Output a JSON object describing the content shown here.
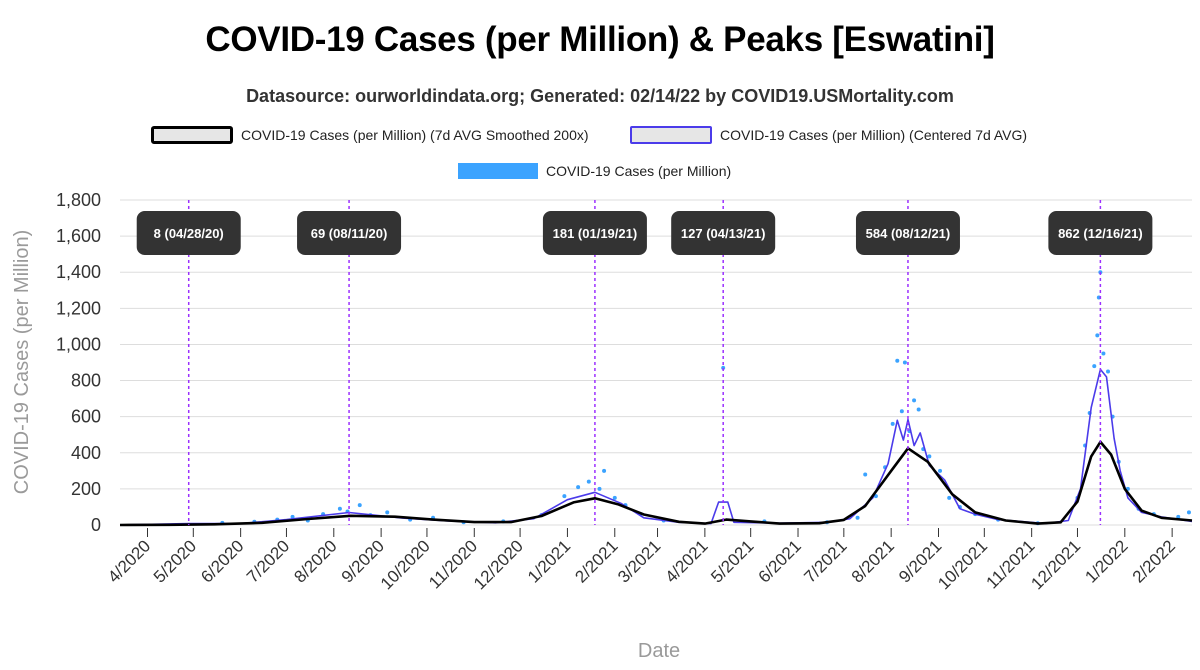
{
  "header": {
    "title": "COVID-19 Cases (per Million) & Peaks [Eswatini]",
    "subtitle": "Datasource: ourworldindata.org; Generated: 02/14/22 by COVID19.USMortality.com"
  },
  "legend": {
    "smoothed": "COVID-19 Cases (per Million) (7d AVG Smoothed 200x)",
    "centered": "COVID-19 Cases (per Million) (Centered 7d AVG)",
    "cases": "COVID-19 Cases (per Million)"
  },
  "colors": {
    "smoothed": "#000000",
    "centered": "#4b3bea",
    "cases": "#3ba3ff",
    "peak_line": "#9b30ff",
    "peak_label_bg": "#333333",
    "grid": "#dddddd"
  },
  "chart_data": {
    "type": "line",
    "title": "COVID-19 Cases (per Million) & Peaks [Eswatini]",
    "xlabel": "Date",
    "ylabel": "COVID-19 Cases (per Million)",
    "ylim": [
      0,
      1800
    ],
    "yticks": [
      0,
      200,
      400,
      600,
      800,
      1000,
      1200,
      1400,
      1600,
      1800
    ],
    "ytick_labels": [
      "0",
      "200",
      "400",
      "600",
      "800",
      "1,000",
      "1,200",
      "1,400",
      "1,600",
      "1,800"
    ],
    "xlim": [
      "2020-03-14",
      "2022-02-14"
    ],
    "xticks": [
      {
        "date": "2020-04-01",
        "label": "4/2020"
      },
      {
        "date": "2020-05-01",
        "label": "5/2020"
      },
      {
        "date": "2020-06-01",
        "label": "6/2020"
      },
      {
        "date": "2020-07-01",
        "label": "7/2020"
      },
      {
        "date": "2020-08-01",
        "label": "8/2020"
      },
      {
        "date": "2020-09-01",
        "label": "9/2020"
      },
      {
        "date": "2020-10-01",
        "label": "10/2020"
      },
      {
        "date": "2020-11-01",
        "label": "11/2020"
      },
      {
        "date": "2020-12-01",
        "label": "12/2020"
      },
      {
        "date": "2021-01-01",
        "label": "1/2021"
      },
      {
        "date": "2021-02-01",
        "label": "2/2021"
      },
      {
        "date": "2021-03-01",
        "label": "3/2021"
      },
      {
        "date": "2021-04-01",
        "label": "4/2021"
      },
      {
        "date": "2021-05-01",
        "label": "5/2021"
      },
      {
        "date": "2021-06-01",
        "label": "6/2021"
      },
      {
        "date": "2021-07-01",
        "label": "7/2021"
      },
      {
        "date": "2021-08-01",
        "label": "8/2021"
      },
      {
        "date": "2021-09-01",
        "label": "9/2021"
      },
      {
        "date": "2021-10-01",
        "label": "10/2021"
      },
      {
        "date": "2021-11-01",
        "label": "11/2021"
      },
      {
        "date": "2021-12-01",
        "label": "12/2021"
      },
      {
        "date": "2022-01-01",
        "label": "1/2022"
      },
      {
        "date": "2022-02-01",
        "label": "2/2022"
      }
    ],
    "grid": true,
    "legend_position": "top",
    "peaks": [
      {
        "date": "2020-04-28",
        "label": "8 (04/28/20)"
      },
      {
        "date": "2020-08-11",
        "label": "69 (08/11/20)"
      },
      {
        "date": "2021-01-19",
        "label": "181 (01/19/21)"
      },
      {
        "date": "2021-04-13",
        "label": "127 (04/13/21)"
      },
      {
        "date": "2021-08-12",
        "label": "584 (08/12/21)"
      },
      {
        "date": "2021-12-16",
        "label": "862 (12/16/21)"
      }
    ],
    "series": [
      {
        "name": "COVID-19 Cases (per Million) (7d AVG Smoothed 200x)",
        "style": "line",
        "points": [
          [
            "2020-03-14",
            0
          ],
          [
            "2020-04-15",
            1
          ],
          [
            "2020-05-15",
            4
          ],
          [
            "2020-06-15",
            12
          ],
          [
            "2020-07-15",
            33
          ],
          [
            "2020-08-12",
            51
          ],
          [
            "2020-09-10",
            46
          ],
          [
            "2020-10-05",
            30
          ],
          [
            "2020-11-01",
            16
          ],
          [
            "2020-11-25",
            16
          ],
          [
            "2020-12-15",
            50
          ],
          [
            "2021-01-05",
            125
          ],
          [
            "2021-01-19",
            148
          ],
          [
            "2021-02-03",
            115
          ],
          [
            "2021-02-20",
            58
          ],
          [
            "2021-03-15",
            18
          ],
          [
            "2021-04-01",
            8
          ],
          [
            "2021-04-15",
            30
          ],
          [
            "2021-05-01",
            20
          ],
          [
            "2021-05-20",
            8
          ],
          [
            "2021-06-15",
            10
          ],
          [
            "2021-07-01",
            28
          ],
          [
            "2021-07-15",
            105
          ],
          [
            "2021-08-01",
            300
          ],
          [
            "2021-08-12",
            425
          ],
          [
            "2021-08-25",
            350
          ],
          [
            "2021-09-10",
            170
          ],
          [
            "2021-09-25",
            70
          ],
          [
            "2021-10-15",
            25
          ],
          [
            "2021-11-05",
            8
          ],
          [
            "2021-11-20",
            15
          ],
          [
            "2021-12-01",
            130
          ],
          [
            "2021-12-10",
            380
          ],
          [
            "2021-12-16",
            460
          ],
          [
            "2021-12-23",
            390
          ],
          [
            "2022-01-01",
            200
          ],
          [
            "2022-01-12",
            80
          ],
          [
            "2022-01-25",
            40
          ],
          [
            "2022-02-14",
            25
          ]
        ]
      },
      {
        "name": "COVID-19 Cases (per Million) (Centered 7d AVG)",
        "style": "line",
        "points": [
          [
            "2020-03-14",
            0
          ],
          [
            "2020-04-28",
            8
          ],
          [
            "2020-06-01",
            8
          ],
          [
            "2020-07-01",
            30
          ],
          [
            "2020-08-11",
            69
          ],
          [
            "2020-09-15",
            38
          ],
          [
            "2020-10-15",
            22
          ],
          [
            "2020-11-15",
            12
          ],
          [
            "2020-12-10",
            35
          ],
          [
            "2021-01-01",
            140
          ],
          [
            "2021-01-19",
            181
          ],
          [
            "2021-02-05",
            120
          ],
          [
            "2021-02-20",
            40
          ],
          [
            "2021-03-15",
            15
          ],
          [
            "2021-04-05",
            8
          ],
          [
            "2021-04-10",
            127
          ],
          [
            "2021-04-16",
            127
          ],
          [
            "2021-04-20",
            15
          ],
          [
            "2021-05-20",
            10
          ],
          [
            "2021-06-20",
            15
          ],
          [
            "2021-07-05",
            35
          ],
          [
            "2021-07-20",
            150
          ],
          [
            "2021-07-30",
            340
          ],
          [
            "2021-08-05",
            580
          ],
          [
            "2021-08-09",
            470
          ],
          [
            "2021-08-12",
            584
          ],
          [
            "2021-08-16",
            440
          ],
          [
            "2021-08-20",
            510
          ],
          [
            "2021-08-26",
            330
          ],
          [
            "2021-09-05",
            250
          ],
          [
            "2021-09-15",
            90
          ],
          [
            "2021-09-25",
            60
          ],
          [
            "2021-10-10",
            30
          ],
          [
            "2021-11-10",
            8
          ],
          [
            "2021-11-25",
            25
          ],
          [
            "2021-12-03",
            200
          ],
          [
            "2021-12-10",
            650
          ],
          [
            "2021-12-16",
            862
          ],
          [
            "2021-12-20",
            820
          ],
          [
            "2021-12-25",
            480
          ],
          [
            "2021-12-29",
            300
          ],
          [
            "2022-01-03",
            150
          ],
          [
            "2022-01-12",
            70
          ],
          [
            "2022-01-25",
            45
          ],
          [
            "2022-02-14",
            20
          ]
        ]
      },
      {
        "name": "COVID-19 Cases (per Million)",
        "style": "scatter",
        "points": [
          [
            "2020-05-20",
            12
          ],
          [
            "2020-06-10",
            18
          ],
          [
            "2020-06-25",
            30
          ],
          [
            "2020-07-05",
            45
          ],
          [
            "2020-07-15",
            25
          ],
          [
            "2020-07-25",
            60
          ],
          [
            "2020-08-05",
            90
          ],
          [
            "2020-08-10",
            75
          ],
          [
            "2020-08-18",
            110
          ],
          [
            "2020-08-25",
            55
          ],
          [
            "2020-09-05",
            70
          ],
          [
            "2020-09-20",
            30
          ],
          [
            "2020-10-05",
            40
          ],
          [
            "2020-10-25",
            15
          ],
          [
            "2020-11-20",
            20
          ],
          [
            "2020-12-15",
            55
          ],
          [
            "2020-12-30",
            160
          ],
          [
            "2021-01-08",
            210
          ],
          [
            "2021-01-15",
            240
          ],
          [
            "2021-01-22",
            200
          ],
          [
            "2021-01-25",
            300
          ],
          [
            "2021-02-01",
            150
          ],
          [
            "2021-02-08",
            110
          ],
          [
            "2021-02-18",
            60
          ],
          [
            "2021-03-05",
            25
          ],
          [
            "2021-04-13",
            870
          ],
          [
            "2021-05-10",
            20
          ],
          [
            "2021-06-20",
            15
          ],
          [
            "2021-07-10",
            40
          ],
          [
            "2021-07-15",
            280
          ],
          [
            "2021-07-22",
            160
          ],
          [
            "2021-07-28",
            320
          ],
          [
            "2021-08-02",
            560
          ],
          [
            "2021-08-05",
            910
          ],
          [
            "2021-08-08",
            630
          ],
          [
            "2021-08-10",
            900
          ],
          [
            "2021-08-13",
            520
          ],
          [
            "2021-08-16",
            690
          ],
          [
            "2021-08-19",
            640
          ],
          [
            "2021-08-22",
            420
          ],
          [
            "2021-08-26",
            380
          ],
          [
            "2021-09-02",
            300
          ],
          [
            "2021-09-08",
            150
          ],
          [
            "2021-09-15",
            100
          ],
          [
            "2021-09-25",
            60
          ],
          [
            "2021-10-10",
            30
          ],
          [
            "2021-11-05",
            10
          ],
          [
            "2021-12-01",
            150
          ],
          [
            "2021-12-06",
            440
          ],
          [
            "2021-12-09",
            620
          ],
          [
            "2021-12-12",
            880
          ],
          [
            "2021-12-14",
            1050
          ],
          [
            "2021-12-15",
            1260
          ],
          [
            "2021-12-16",
            1400
          ],
          [
            "2021-12-18",
            950
          ],
          [
            "2021-12-21",
            850
          ],
          [
            "2021-12-24",
            600
          ],
          [
            "2021-12-28",
            350
          ],
          [
            "2022-01-03",
            200
          ],
          [
            "2022-01-10",
            90
          ],
          [
            "2022-01-20",
            60
          ],
          [
            "2022-02-05",
            45
          ],
          [
            "2022-02-12",
            70
          ]
        ]
      }
    ]
  }
}
